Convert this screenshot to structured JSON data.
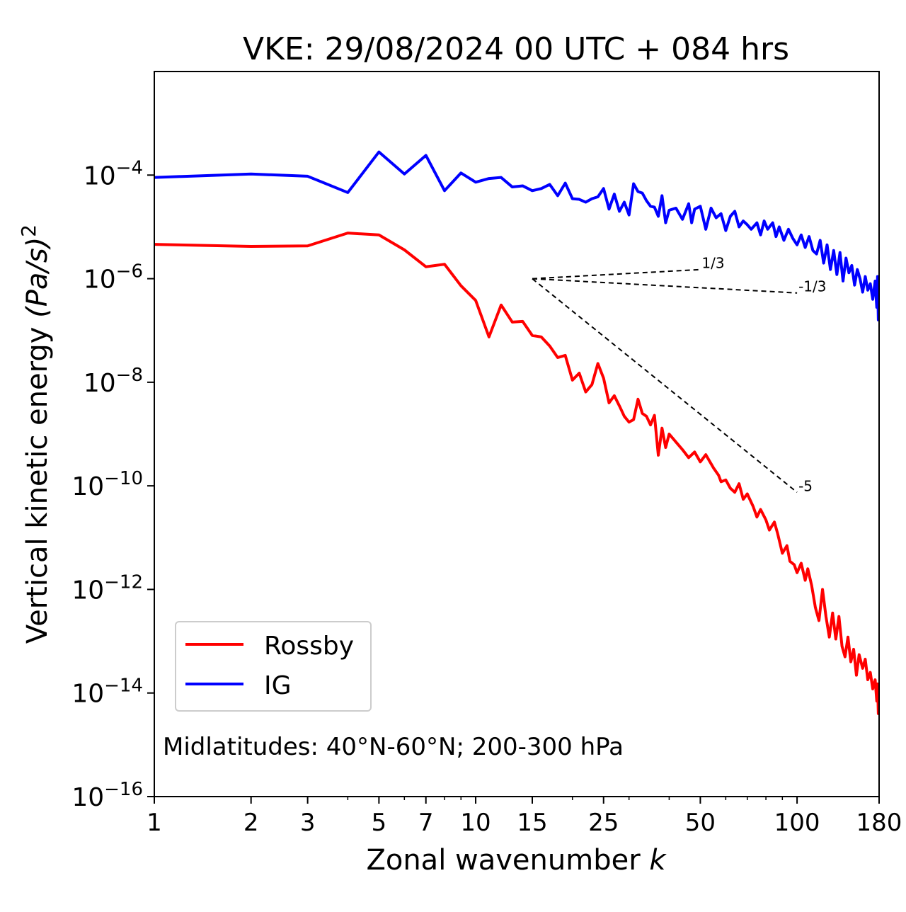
{
  "chart_data": {
    "type": "line",
    "title": "VKE: 29/08/2024 00 UTC + 084 hrs",
    "xlabel": "Zonal wavenumber",
    "xlabel_var": "k",
    "ylabel": "Vertical kinetic energy",
    "ylabel_unit": "(Pa/s)",
    "ylabel_exp": "2",
    "xscale": "log",
    "yscale": "log",
    "xlim": [
      1,
      180
    ],
    "ylim": [
      1e-16,
      0.01
    ],
    "x_ticks": [
      1,
      2,
      3,
      5,
      7,
      10,
      15,
      25,
      50,
      100,
      180
    ],
    "x_tick_labels": [
      "1",
      "2",
      "3",
      "5",
      "7",
      "10",
      "15",
      "25",
      "50",
      "100",
      "180"
    ],
    "y_ticks": [
      {
        "value": 0.0001,
        "base": "10",
        "exp": "−4"
      },
      {
        "value": 1e-06,
        "base": "10",
        "exp": "−6"
      },
      {
        "value": 1e-08,
        "base": "10",
        "exp": "−8"
      },
      {
        "value": 1e-10,
        "base": "10",
        "exp": "−10"
      },
      {
        "value": 1e-12,
        "base": "10",
        "exp": "−12"
      },
      {
        "value": 1e-14,
        "base": "10",
        "exp": "−14"
      },
      {
        "value": 1e-16,
        "base": "10",
        "exp": "−16"
      }
    ],
    "legend": {
      "position": "lower-left",
      "entries": [
        "Rossby",
        "IG"
      ]
    },
    "annotation": "Midlatitudes: 40°N-60°N; 200-300 hPa",
    "series": [
      {
        "name": "Rossby",
        "color": "#ff0000",
        "points": [
          [
            1,
            4.6e-06
          ],
          [
            2,
            4.2e-06
          ],
          [
            3,
            4.3e-06
          ],
          [
            4,
            7.6e-06
          ],
          [
            5,
            7e-06
          ],
          [
            6,
            3.6e-06
          ],
          [
            7,
            1.7e-06
          ],
          [
            8,
            1.9e-06
          ],
          [
            9,
            7.3e-07
          ],
          [
            10,
            3.8e-07
          ],
          [
            11,
            7.5e-08
          ],
          [
            12,
            3.1e-07
          ],
          [
            13,
            1.45e-07
          ],
          [
            14,
            1.5e-07
          ],
          [
            15,
            8e-08
          ],
          [
            16,
            7.5e-08
          ],
          [
            17,
            5e-08
          ],
          [
            18,
            3e-08
          ],
          [
            19,
            3.3e-08
          ],
          [
            20,
            1.1e-08
          ],
          [
            21,
            1.5e-08
          ],
          [
            22,
            6.5e-09
          ],
          [
            23,
            9e-09
          ],
          [
            24,
            2.3e-08
          ],
          [
            25,
            1.2e-08
          ],
          [
            26,
            4e-09
          ],
          [
            27,
            5.5e-09
          ],
          [
            28,
            3.5e-09
          ],
          [
            29,
            2.2e-09
          ],
          [
            30,
            1.7e-09
          ],
          [
            31,
            1.9e-09
          ],
          [
            32,
            4.7e-09
          ],
          [
            33,
            2.5e-09
          ],
          [
            34,
            2.2e-09
          ],
          [
            35,
            1.5e-09
          ],
          [
            36,
            2.3e-09
          ],
          [
            37,
            3.9e-10
          ],
          [
            38,
            1.3e-09
          ],
          [
            39,
            5.5e-10
          ],
          [
            40,
            1e-09
          ],
          [
            42,
            7e-10
          ],
          [
            44,
            5e-10
          ],
          [
            46,
            3.5e-10
          ],
          [
            48,
            4.5e-10
          ],
          [
            50,
            2.9e-10
          ],
          [
            52,
            4e-10
          ],
          [
            55,
            2.2e-10
          ],
          [
            57,
            1.6e-10
          ],
          [
            58,
            1.2e-10
          ],
          [
            60,
            1.3e-10
          ],
          [
            62,
            9e-11
          ],
          [
            64,
            7.5e-11
          ],
          [
            66,
            1.1e-10
          ],
          [
            68,
            5.5e-11
          ],
          [
            70,
            7e-11
          ],
          [
            73,
            4e-11
          ],
          [
            75,
            2.5e-11
          ],
          [
            77,
            3.5e-11
          ],
          [
            80,
            2.2e-11
          ],
          [
            82,
            1.4e-11
          ],
          [
            85,
            2e-11
          ],
          [
            87,
            1.2e-11
          ],
          [
            90,
            5e-12
          ],
          [
            93,
            7e-12
          ],
          [
            95,
            3.5e-12
          ],
          [
            98,
            3e-12
          ],
          [
            100,
            2.1e-12
          ],
          [
            103,
            3.2e-12
          ],
          [
            106,
            1.5e-12
          ],
          [
            108,
            2.5e-12
          ],
          [
            111,
            1.2e-12
          ],
          [
            114,
            4.5e-13
          ],
          [
            117,
            2.5e-13
          ],
          [
            120,
            1e-12
          ],
          [
            123,
            3e-13
          ],
          [
            126,
            1.2e-13
          ],
          [
            129,
            3.5e-13
          ],
          [
            132,
            1.1e-13
          ],
          [
            135,
            3e-13
          ],
          [
            138,
            8e-14
          ],
          [
            141,
            5e-14
          ],
          [
            144,
            1.2e-13
          ],
          [
            147,
            4e-14
          ],
          [
            150,
            7e-14
          ],
          [
            153,
            2.2e-14
          ],
          [
            156,
            5.5e-14
          ],
          [
            160,
            3e-14
          ],
          [
            163,
            4.5e-14
          ],
          [
            166,
            1.8e-14
          ],
          [
            169,
            2.5e-14
          ],
          [
            172,
            1.2e-14
          ],
          [
            175,
            1.8e-14
          ],
          [
            177,
            7e-15
          ],
          [
            178,
            1.5e-14
          ],
          [
            179,
            4e-15
          ],
          [
            180,
            4e-15
          ]
        ]
      },
      {
        "name": "IG",
        "color": "#0000ff",
        "points": [
          [
            1,
            9e-05
          ],
          [
            2,
            0.000105
          ],
          [
            3,
            9.5e-05
          ],
          [
            4,
            4.6e-05
          ],
          [
            5,
            0.00028
          ],
          [
            6,
            0.000105
          ],
          [
            7,
            0.00024
          ],
          [
            8,
            5e-05
          ],
          [
            9,
            0.00011
          ],
          [
            10,
            7.3e-05
          ],
          [
            11,
            8.6e-05
          ],
          [
            12,
            9e-05
          ],
          [
            13,
            5.9e-05
          ],
          [
            14,
            6.2e-05
          ],
          [
            15,
            5e-05
          ],
          [
            16,
            5.5e-05
          ],
          [
            17,
            6.6e-05
          ],
          [
            18,
            4e-05
          ],
          [
            19,
            7e-05
          ],
          [
            20,
            3.5e-05
          ],
          [
            21,
            3.4e-05
          ],
          [
            22,
            3e-05
          ],
          [
            23,
            3.5e-05
          ],
          [
            24,
            3.8e-05
          ],
          [
            25,
            5.5e-05
          ],
          [
            26,
            2.2e-05
          ],
          [
            27,
            4.3e-05
          ],
          [
            28,
            2e-05
          ],
          [
            29,
            3e-05
          ],
          [
            30,
            1.7e-05
          ],
          [
            31,
            6.8e-05
          ],
          [
            32,
            4.8e-05
          ],
          [
            33,
            4.5e-05
          ],
          [
            34,
            3.2e-05
          ],
          [
            35,
            2.5e-05
          ],
          [
            36,
            2.4e-05
          ],
          [
            37,
            1.6e-05
          ],
          [
            38,
            4e-05
          ],
          [
            39,
            1.2e-05
          ],
          [
            40,
            2.1e-05
          ],
          [
            42,
            2.3e-05
          ],
          [
            44,
            1.4e-05
          ],
          [
            46,
            2.8e-05
          ],
          [
            47,
            1.2e-05
          ],
          [
            48,
            2.2e-05
          ],
          [
            50,
            2.5e-05
          ],
          [
            52,
            9e-06
          ],
          [
            54,
            2.3e-05
          ],
          [
            56,
            1.5e-05
          ],
          [
            58,
            1.8e-05
          ],
          [
            60,
            8.5e-06
          ],
          [
            62,
            1.6e-05
          ],
          [
            64,
            2e-05
          ],
          [
            66,
            1e-05
          ],
          [
            68,
            1.3e-05
          ],
          [
            70,
            1.1e-05
          ],
          [
            72,
            9e-06
          ],
          [
            75,
            1.2e-05
          ],
          [
            77,
            7e-06
          ],
          [
            79,
            1.3e-05
          ],
          [
            81,
            9e-06
          ],
          [
            84,
            1.2e-05
          ],
          [
            86,
            6.5e-06
          ],
          [
            88,
            1e-05
          ],
          [
            91,
            5.5e-06
          ],
          [
            94,
            9e-06
          ],
          [
            97,
            6e-06
          ],
          [
            100,
            4.5e-06
          ],
          [
            103,
            7e-06
          ],
          [
            106,
            4e-06
          ],
          [
            109,
            6.5e-06
          ],
          [
            112,
            3.5e-06
          ],
          [
            115,
            3e-06
          ],
          [
            118,
            5.5e-06
          ],
          [
            121,
            2e-06
          ],
          [
            124,
            4.5e-06
          ],
          [
            127,
            1.5e-06
          ],
          [
            130,
            3.5e-06
          ],
          [
            133,
            1.2e-06
          ],
          [
            136,
            3.2e-06
          ],
          [
            139,
            9e-07
          ],
          [
            142,
            2.5e-06
          ],
          [
            145,
            1.3e-06
          ],
          [
            148,
            1.8e-06
          ],
          [
            151,
            7.5e-07
          ],
          [
            154,
            1.5e-06
          ],
          [
            157,
            1e-06
          ],
          [
            160,
            5.5e-07
          ],
          [
            163,
            1.1e-06
          ],
          [
            166,
            6e-07
          ],
          [
            169,
            8e-07
          ],
          [
            172,
            4e-07
          ],
          [
            175,
            9e-07
          ],
          [
            177,
            2.8e-07
          ],
          [
            178,
            1.1e-06
          ],
          [
            179,
            1.6e-07
          ],
          [
            180,
            4e-07
          ]
        ]
      }
    ],
    "reference_slopes": [
      {
        "label": "1/3",
        "from": [
          15,
          1e-06
        ],
        "to": [
          50,
          1.5e-06
        ]
      },
      {
        "label": "-1/3",
        "from": [
          15,
          1e-06
        ],
        "to": [
          100,
          5.3e-07
        ]
      },
      {
        "label": "-5",
        "from": [
          15,
          1e-06
        ],
        "to": [
          100,
          7.5e-11
        ]
      }
    ]
  }
}
